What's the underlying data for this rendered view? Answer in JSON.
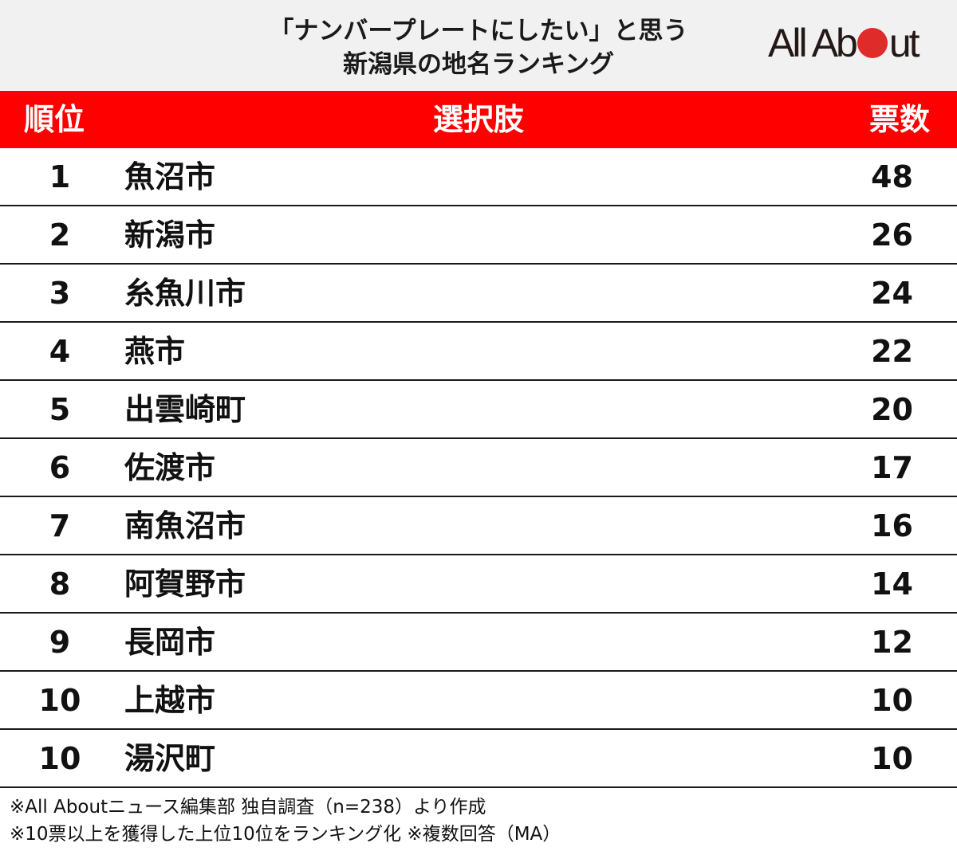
{
  "header": {
    "title_line1": "「ナンバープレートにしたい」と思う",
    "title_line2": "新潟県の地名ランキング",
    "logo": {
      "part1": "All Ab",
      "part2": "ut",
      "dot_color": "#e02b2b"
    }
  },
  "table": {
    "columns": [
      "順位",
      "選択肢",
      "票数"
    ],
    "header_color": "#ff0000",
    "rows": [
      {
        "rank": "1",
        "name": "魚沼市",
        "votes": "48"
      },
      {
        "rank": "2",
        "name": "新潟市",
        "votes": "26"
      },
      {
        "rank": "3",
        "name": "糸魚川市",
        "votes": "24"
      },
      {
        "rank": "4",
        "name": "燕市",
        "votes": "22"
      },
      {
        "rank": "5",
        "name": "出雲崎町",
        "votes": "20"
      },
      {
        "rank": "6",
        "name": "佐渡市",
        "votes": "17"
      },
      {
        "rank": "7",
        "name": "南魚沼市",
        "votes": "16"
      },
      {
        "rank": "8",
        "name": "阿賀野市",
        "votes": "14"
      },
      {
        "rank": "9",
        "name": "長岡市",
        "votes": "12"
      },
      {
        "rank": "10",
        "name": "上越市",
        "votes": "10"
      },
      {
        "rank": "10",
        "name": "湯沢町",
        "votes": "10"
      }
    ]
  },
  "notes": [
    "※All Aboutニュース編集部 独自調査（n=238）より作成",
    "※10票以上を獲得した上位10位をランキング化 ※複数回答（MA）"
  ],
  "chart_data": {
    "type": "table",
    "title": "「ナンバープレートにしたい」と思う新潟県の地名ランキング",
    "columns": [
      "順位",
      "選択肢",
      "票数"
    ],
    "categories": [
      "魚沼市",
      "新潟市",
      "糸魚川市",
      "燕市",
      "出雲崎町",
      "佐渡市",
      "南魚沼市",
      "阿賀野市",
      "長岡市",
      "上越市",
      "湯沢町"
    ],
    "ranks": [
      1,
      2,
      3,
      4,
      5,
      6,
      7,
      8,
      9,
      10,
      10
    ],
    "values": [
      48,
      26,
      24,
      22,
      20,
      17,
      16,
      14,
      12,
      10,
      10
    ],
    "notes": [
      "n=238",
      "10票以上を獲得した上位10位",
      "複数回答（MA）"
    ]
  }
}
